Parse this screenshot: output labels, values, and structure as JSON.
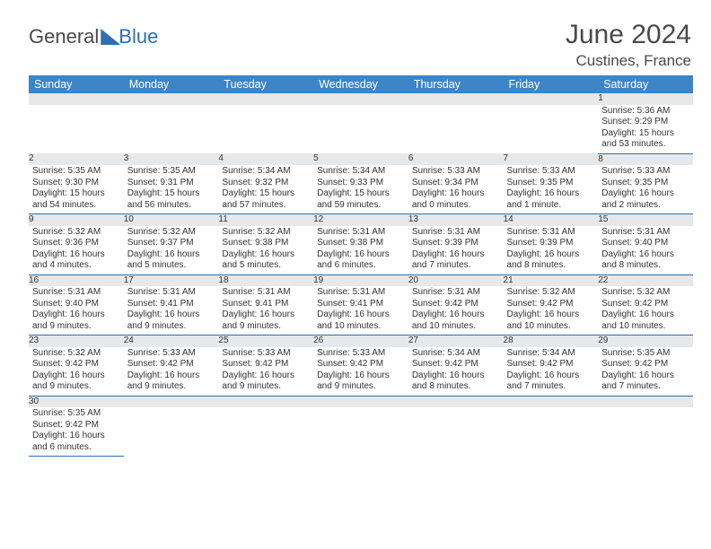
{
  "logo": {
    "text1": "General",
    "text2": "Blue"
  },
  "title": "June 2024",
  "location": "Custines, France",
  "colors": {
    "header_bg": "#3d85c6",
    "header_text": "#ffffff",
    "daynum_bg": "#e7e8e9",
    "border": "#2f6fb0",
    "logo_blue": "#2f6fb0",
    "text": "#333333"
  },
  "weekdays": [
    "Sunday",
    "Monday",
    "Tuesday",
    "Wednesday",
    "Thursday",
    "Friday",
    "Saturday"
  ],
  "weeks": [
    [
      null,
      null,
      null,
      null,
      null,
      null,
      {
        "n": "1",
        "sr": "Sunrise: 5:36 AM",
        "ss": "Sunset: 9:29 PM",
        "dl": "Daylight: 15 hours and 53 minutes."
      }
    ],
    [
      {
        "n": "2",
        "sr": "Sunrise: 5:35 AM",
        "ss": "Sunset: 9:30 PM",
        "dl": "Daylight: 15 hours and 54 minutes."
      },
      {
        "n": "3",
        "sr": "Sunrise: 5:35 AM",
        "ss": "Sunset: 9:31 PM",
        "dl": "Daylight: 15 hours and 56 minutes."
      },
      {
        "n": "4",
        "sr": "Sunrise: 5:34 AM",
        "ss": "Sunset: 9:32 PM",
        "dl": "Daylight: 15 hours and 57 minutes."
      },
      {
        "n": "5",
        "sr": "Sunrise: 5:34 AM",
        "ss": "Sunset: 9:33 PM",
        "dl": "Daylight: 15 hours and 59 minutes."
      },
      {
        "n": "6",
        "sr": "Sunrise: 5:33 AM",
        "ss": "Sunset: 9:34 PM",
        "dl": "Daylight: 16 hours and 0 minutes."
      },
      {
        "n": "7",
        "sr": "Sunrise: 5:33 AM",
        "ss": "Sunset: 9:35 PM",
        "dl": "Daylight: 16 hours and 1 minute."
      },
      {
        "n": "8",
        "sr": "Sunrise: 5:33 AM",
        "ss": "Sunset: 9:35 PM",
        "dl": "Daylight: 16 hours and 2 minutes."
      }
    ],
    [
      {
        "n": "9",
        "sr": "Sunrise: 5:32 AM",
        "ss": "Sunset: 9:36 PM",
        "dl": "Daylight: 16 hours and 4 minutes."
      },
      {
        "n": "10",
        "sr": "Sunrise: 5:32 AM",
        "ss": "Sunset: 9:37 PM",
        "dl": "Daylight: 16 hours and 5 minutes."
      },
      {
        "n": "11",
        "sr": "Sunrise: 5:32 AM",
        "ss": "Sunset: 9:38 PM",
        "dl": "Daylight: 16 hours and 5 minutes."
      },
      {
        "n": "12",
        "sr": "Sunrise: 5:31 AM",
        "ss": "Sunset: 9:38 PM",
        "dl": "Daylight: 16 hours and 6 minutes."
      },
      {
        "n": "13",
        "sr": "Sunrise: 5:31 AM",
        "ss": "Sunset: 9:39 PM",
        "dl": "Daylight: 16 hours and 7 minutes."
      },
      {
        "n": "14",
        "sr": "Sunrise: 5:31 AM",
        "ss": "Sunset: 9:39 PM",
        "dl": "Daylight: 16 hours and 8 minutes."
      },
      {
        "n": "15",
        "sr": "Sunrise: 5:31 AM",
        "ss": "Sunset: 9:40 PM",
        "dl": "Daylight: 16 hours and 8 minutes."
      }
    ],
    [
      {
        "n": "16",
        "sr": "Sunrise: 5:31 AM",
        "ss": "Sunset: 9:40 PM",
        "dl": "Daylight: 16 hours and 9 minutes."
      },
      {
        "n": "17",
        "sr": "Sunrise: 5:31 AM",
        "ss": "Sunset: 9:41 PM",
        "dl": "Daylight: 16 hours and 9 minutes."
      },
      {
        "n": "18",
        "sr": "Sunrise: 5:31 AM",
        "ss": "Sunset: 9:41 PM",
        "dl": "Daylight: 16 hours and 9 minutes."
      },
      {
        "n": "19",
        "sr": "Sunrise: 5:31 AM",
        "ss": "Sunset: 9:41 PM",
        "dl": "Daylight: 16 hours and 10 minutes."
      },
      {
        "n": "20",
        "sr": "Sunrise: 5:31 AM",
        "ss": "Sunset: 9:42 PM",
        "dl": "Daylight: 16 hours and 10 minutes."
      },
      {
        "n": "21",
        "sr": "Sunrise: 5:32 AM",
        "ss": "Sunset: 9:42 PM",
        "dl": "Daylight: 16 hours and 10 minutes."
      },
      {
        "n": "22",
        "sr": "Sunrise: 5:32 AM",
        "ss": "Sunset: 9:42 PM",
        "dl": "Daylight: 16 hours and 10 minutes."
      }
    ],
    [
      {
        "n": "23",
        "sr": "Sunrise: 5:32 AM",
        "ss": "Sunset: 9:42 PM",
        "dl": "Daylight: 16 hours and 9 minutes."
      },
      {
        "n": "24",
        "sr": "Sunrise: 5:33 AM",
        "ss": "Sunset: 9:42 PM",
        "dl": "Daylight: 16 hours and 9 minutes."
      },
      {
        "n": "25",
        "sr": "Sunrise: 5:33 AM",
        "ss": "Sunset: 9:42 PM",
        "dl": "Daylight: 16 hours and 9 minutes."
      },
      {
        "n": "26",
        "sr": "Sunrise: 5:33 AM",
        "ss": "Sunset: 9:42 PM",
        "dl": "Daylight: 16 hours and 9 minutes."
      },
      {
        "n": "27",
        "sr": "Sunrise: 5:34 AM",
        "ss": "Sunset: 9:42 PM",
        "dl": "Daylight: 16 hours and 8 minutes."
      },
      {
        "n": "28",
        "sr": "Sunrise: 5:34 AM",
        "ss": "Sunset: 9:42 PM",
        "dl": "Daylight: 16 hours and 7 minutes."
      },
      {
        "n": "29",
        "sr": "Sunrise: 5:35 AM",
        "ss": "Sunset: 9:42 PM",
        "dl": "Daylight: 16 hours and 7 minutes."
      }
    ],
    [
      {
        "n": "30",
        "sr": "Sunrise: 5:35 AM",
        "ss": "Sunset: 9:42 PM",
        "dl": "Daylight: 16 hours and 6 minutes."
      },
      null,
      null,
      null,
      null,
      null,
      null
    ]
  ]
}
